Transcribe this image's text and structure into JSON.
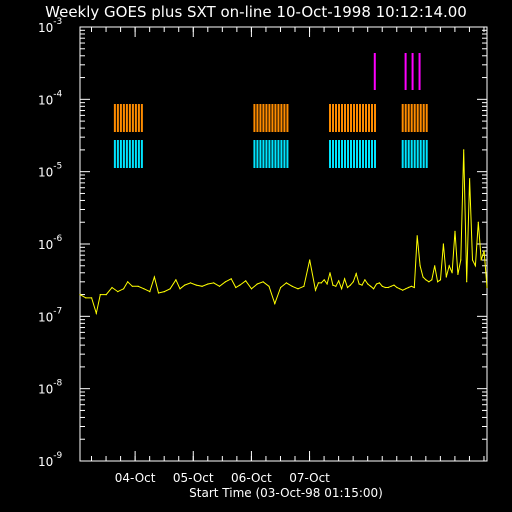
{
  "chart_data": {
    "type": "line",
    "title": "Weekly GOES plus SXT on-line 10-Oct-1998 10:12:14.00",
    "xlabel": "Start Time (03-Oct-98 01:15:00)",
    "ylabel": "",
    "scale_y": "log",
    "x_range_days": [
      0,
      7
    ],
    "ylim": [
      1e-09,
      0.001
    ],
    "x_ticks": [
      {
        "label": "04-Oct",
        "day": 0.948
      },
      {
        "label": "05-Oct",
        "day": 1.948
      },
      {
        "label": "06-Oct",
        "day": 2.948
      },
      {
        "label": "07-Oct",
        "day": 3.948
      }
    ],
    "y_ticks": [
      {
        "base": "10",
        "exp": "-9",
        "value": 1e-09
      },
      {
        "base": "10",
        "exp": "-8",
        "value": 1e-08
      },
      {
        "base": "10",
        "exp": "-7",
        "value": 1e-07
      },
      {
        "base": "10",
        "exp": "-6",
        "value": 1e-06
      },
      {
        "base": "10",
        "exp": "-5",
        "value": 1e-05
      },
      {
        "base": "10",
        "exp": "-4",
        "value": 0.0001
      },
      {
        "base": "10",
        "exp": "-3",
        "value": 0.001
      }
    ],
    "series": [
      {
        "color": "#ffff00",
        "x": [
          0.0,
          0.1,
          0.2,
          0.28,
          0.35,
          0.45,
          0.55,
          0.65,
          0.75,
          0.82,
          0.9,
          1.0,
          1.1,
          1.2,
          1.28,
          1.35,
          1.45,
          1.55,
          1.65,
          1.72,
          1.8,
          1.9,
          2.0,
          2.1,
          2.2,
          2.3,
          2.4,
          2.5,
          2.6,
          2.68,
          2.75,
          2.85,
          2.95,
          3.05,
          3.15,
          3.25,
          3.35,
          3.45,
          3.55,
          3.65,
          3.75,
          3.85,
          3.95,
          4.05,
          4.1,
          4.15,
          4.2,
          4.25,
          4.3,
          4.35,
          4.4,
          4.45,
          4.5,
          4.55,
          4.6,
          4.65,
          4.7,
          4.75,
          4.8,
          4.85,
          4.9,
          4.95,
          5.0,
          5.05,
          5.1,
          5.15,
          5.2,
          5.25,
          5.3,
          5.35,
          5.4,
          5.45,
          5.5,
          5.55,
          5.6,
          5.65,
          5.7,
          5.75,
          5.8,
          5.85,
          5.9,
          5.95,
          6.0,
          6.05,
          6.1,
          6.15,
          6.2,
          6.25,
          6.3,
          6.35,
          6.4,
          6.45,
          6.5,
          6.55,
          6.6,
          6.65,
          6.7,
          6.75,
          6.8,
          6.85,
          6.9,
          6.95,
          7.0
        ],
        "y": [
          2e-07,
          1.8e-07,
          1.8e-07,
          1.1e-07,
          2e-07,
          2e-07,
          2.5e-07,
          2.2e-07,
          2.4e-07,
          3e-07,
          2.6e-07,
          2.6e-07,
          2.4e-07,
          2.2e-07,
          3.5e-07,
          2.1e-07,
          2.2e-07,
          2.4e-07,
          3.2e-07,
          2.4e-07,
          2.7e-07,
          2.9e-07,
          2.7e-07,
          2.6e-07,
          2.8e-07,
          2.9e-07,
          2.6e-07,
          3e-07,
          3.3e-07,
          2.5e-07,
          2.7e-07,
          3.1e-07,
          2.4e-07,
          2.8e-07,
          3e-07,
          2.6e-07,
          1.5e-07,
          2.5e-07,
          2.9e-07,
          2.6e-07,
          2.4e-07,
          2.6e-07,
          6e-07,
          2.3e-07,
          2.9e-07,
          2.9e-07,
          3.2e-07,
          2.8e-07,
          4e-07,
          2.7e-07,
          2.6e-07,
          3.1e-07,
          2.4e-07,
          3.3e-07,
          2.5e-07,
          2.7e-07,
          3e-07,
          3.9e-07,
          2.8e-07,
          2.7e-07,
          3.2e-07,
          2.8e-07,
          2.6e-07,
          2.4e-07,
          2.8e-07,
          2.9e-07,
          2.6e-07,
          2.5e-07,
          2.5e-07,
          2.6e-07,
          2.7e-07,
          2.5e-07,
          2.4e-07,
          2.3e-07,
          2.4e-07,
          2.5e-07,
          2.6e-07,
          2.5e-07,
          1.3e-06,
          5e-07,
          3.5e-07,
          3.2e-07,
          3e-07,
          3.2e-07,
          5e-07,
          3e-07,
          3.2e-07,
          1e-06,
          3.5e-07,
          5e-07,
          4e-07,
          1.5e-06,
          3.8e-07,
          6e-07,
          2e-05,
          3e-07,
          8e-06,
          6e-07,
          5e-07,
          2e-06,
          6e-07,
          8e-07,
          2.5e-07
        ]
      }
    ],
    "markers": {
      "magenta": {
        "color": "#ff00ff",
        "intervals": [
          [
            5.07,
            5.09
          ],
          [
            5.6,
            5.63
          ],
          [
            5.72,
            5.75
          ],
          [
            5.84,
            5.87
          ]
        ]
      },
      "orange": {
        "color": "#ff8c00",
        "intervals": [
          [
            0.6,
            1.1
          ],
          [
            3.0,
            3.6
          ],
          [
            4.3,
            5.1
          ],
          [
            5.55,
            5.99
          ]
        ]
      },
      "cyan": {
        "color": "#00e5ff",
        "intervals": [
          [
            0.6,
            1.1
          ],
          [
            3.0,
            3.6
          ],
          [
            4.3,
            5.1
          ],
          [
            5.55,
            5.99
          ]
        ]
      }
    }
  }
}
